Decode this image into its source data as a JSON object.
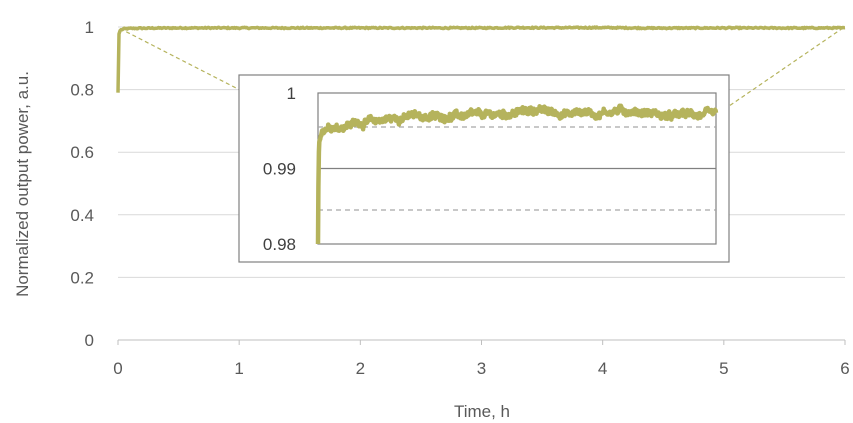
{
  "chart_data": [
    {
      "type": "line",
      "name": "main",
      "xlabel": "Time, h",
      "ylabel": "Normalized  output power, a.u.",
      "xlim": [
        0,
        6
      ],
      "ylim": [
        0,
        1
      ],
      "x_ticks": [
        "0",
        "1",
        "2",
        "3",
        "4",
        "5",
        "6"
      ],
      "y_ticks": [
        "0",
        "0.2",
        "0.4",
        "0.6",
        "0.8",
        "1"
      ],
      "grid": "horizontal",
      "line_color": "#b5b35c",
      "series": [
        {
          "x": [
            0,
            0.005,
            0.01,
            0.02,
            0.05,
            0.1,
            0.2,
            0.3,
            0.5,
            1.0,
            1.5,
            2.0,
            2.5,
            3.0,
            3.3,
            3.5,
            4.0,
            4.4,
            5.0,
            5.5,
            6.0
          ],
          "y": [
            0.79,
            0.96,
            0.985,
            0.99,
            0.994,
            0.9955,
            0.996,
            0.9965,
            0.997,
            0.997,
            0.997,
            0.997,
            0.997,
            0.997,
            0.998,
            0.9975,
            0.998,
            0.9965,
            0.997,
            0.9968,
            0.997
          ]
        }
      ]
    },
    {
      "type": "line",
      "name": "inset",
      "ylim": [
        0.98,
        1.0
      ],
      "y_ticks": [
        "0.98",
        "0.99",
        "1"
      ],
      "grid_solid": [
        0.99
      ],
      "grid_dashed": [
        0.9845,
        0.9955
      ],
      "line_color": "#b5b35c",
      "series": [
        {
          "x": [
            0,
            0.01,
            0.02,
            0.05,
            0.1,
            0.2,
            0.3,
            0.5,
            0.8,
            1.0,
            1.3,
            1.5,
            1.7,
            2.0,
            2.5,
            3.0,
            3.3,
            3.5,
            3.8,
            4.0,
            4.2,
            4.4,
            4.6,
            4.8,
            5.0,
            5.3,
            5.5,
            5.8,
            6.0
          ],
          "y": [
            0.98,
            0.9915,
            0.9935,
            0.9948,
            0.9955,
            0.9958,
            0.9955,
            0.996,
            0.9962,
            0.9965,
            0.9968,
            0.997,
            0.9968,
            0.997,
            0.997,
            0.9974,
            0.9978,
            0.9975,
            0.9972,
            0.9976,
            0.9972,
            0.9976,
            0.9977,
            0.9975,
            0.9974,
            0.9968,
            0.9972,
            0.9971,
            0.997
          ]
        }
      ]
    }
  ]
}
